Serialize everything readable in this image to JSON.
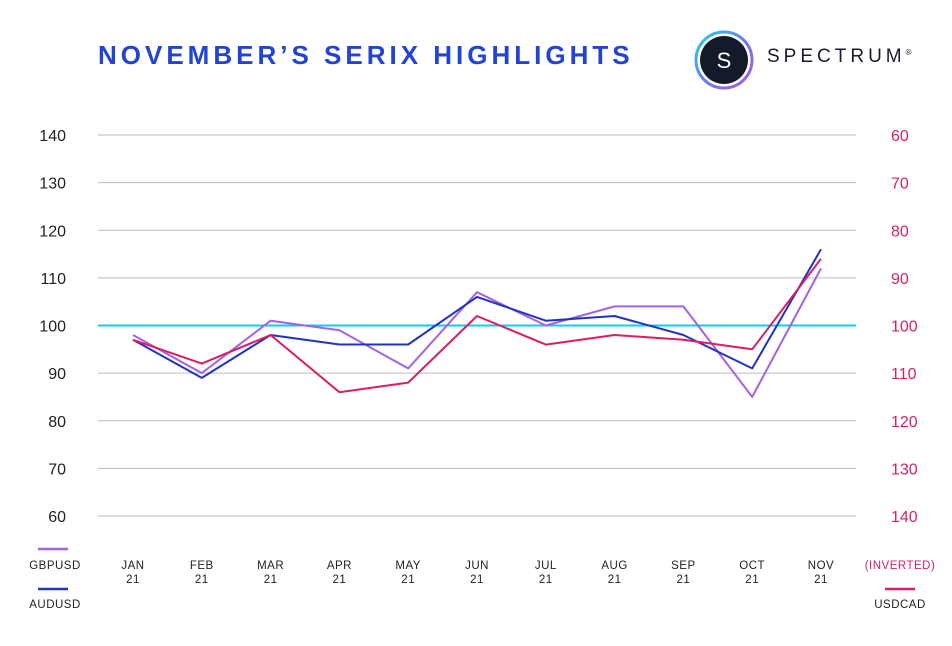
{
  "header": {
    "title": "NOVEMBER’S SERIX HIGHLIGHTS",
    "brand_letter": "S",
    "brand_name": "SPECTRUM",
    "brand_mark": "®"
  },
  "chart_data": {
    "type": "line",
    "categories": [
      [
        "JAN",
        "21"
      ],
      [
        "FEB",
        "21"
      ],
      [
        "MAR",
        "21"
      ],
      [
        "APR",
        "21"
      ],
      [
        "MAY",
        "21"
      ],
      [
        "JUN",
        "21"
      ],
      [
        "JUL",
        "21"
      ],
      [
        "AUG",
        "21"
      ],
      [
        "SEP",
        "21"
      ],
      [
        "OCT",
        "21"
      ],
      [
        "NOV",
        "21"
      ]
    ],
    "left_axis": {
      "ticks": [
        140,
        130,
        120,
        110,
        100,
        90,
        80,
        70,
        60
      ],
      "ylim": [
        60,
        140
      ]
    },
    "right_axis": {
      "ticks": [
        60,
        70,
        80,
        90,
        100,
        110,
        120,
        130,
        140
      ],
      "ylim": [
        60,
        140
      ],
      "inverted": true,
      "label": "(INVERTED)"
    },
    "reference_line": {
      "value": 100,
      "color": "#18c8f0"
    },
    "grid": true,
    "series": [
      {
        "name": "GBPUSD",
        "axis": "left",
        "color": "#a463e0",
        "values": [
          98,
          90,
          101,
          99,
          91,
          107,
          100,
          104,
          104,
          85,
          112
        ]
      },
      {
        "name": "AUDUSD",
        "axis": "left",
        "color": "#2233c0",
        "values": [
          97,
          89,
          98,
          96,
          96,
          106,
          101,
          102,
          98,
          91,
          116
        ]
      },
      {
        "name": "USDCAD",
        "axis": "right",
        "color": "#d91e63",
        "values": [
          103,
          108,
          102,
          114,
          112,
          98,
          104,
          102,
          103,
          105,
          86
        ]
      }
    ]
  }
}
